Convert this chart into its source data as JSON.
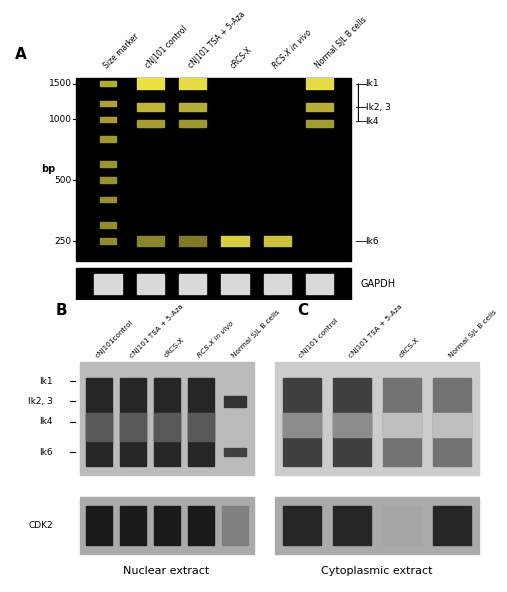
{
  "panel_A_label": "A",
  "panel_B_label": "B",
  "panel_C_label": "C",
  "panel_A_col_labels": [
    "Size marker",
    "cNJ101 control",
    "cNJ101 TSA + 5-Aza",
    "cRCS-X",
    "RCS-X in vivo",
    "Normal SJL B cells"
  ],
  "panel_B_col_labels": [
    "cNJ101control",
    "cNJ101 TSA + 5-Aza",
    "cRCS-X",
    "RCS-X in vivo",
    "Normal SJL B cells"
  ],
  "panel_C_col_labels": [
    "cNJ101 control",
    "cNJ101 TSA + 5-Aza",
    "cRCS-X",
    "Normal SJL B cells"
  ],
  "bp_label": "bp",
  "bp_ticks": [
    "1500",
    "1000",
    "500",
    "250"
  ],
  "right_labels_A": [
    "Ik1",
    "Ik2, 3",
    "Ik4",
    "Ik6"
  ],
  "left_labels_B": [
    "Ik1",
    "Ik2, 3",
    "Ik4",
    "Ik6"
  ],
  "cdk2_label": "CDK2",
  "nuclear_label": "Nuclear extract",
  "cytoplasmic_label": "Cytoplasmic extract",
  "gapdh_label": "GAPDH",
  "bg_color": "#000000",
  "gel_bg": "#1a1a1a",
  "band_bright": "#f0f0a0",
  "band_mid": "#c8c860",
  "band_dim": "#888840"
}
